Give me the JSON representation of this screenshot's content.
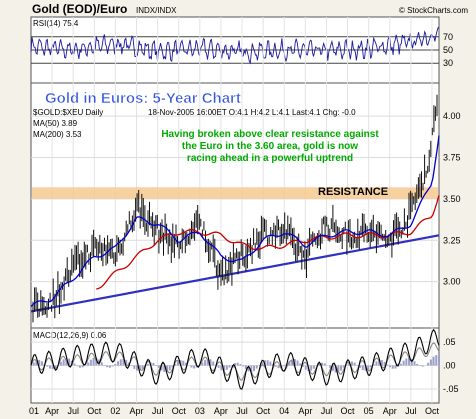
{
  "header": {
    "title": "Gold (EOD)/Euro",
    "exchange": "INDX/INDX",
    "brand": "© StockCharts.com"
  },
  "rsi": {
    "label": "RSI(14) 75.4",
    "ticks": [
      "70",
      "50",
      "30"
    ]
  },
  "main": {
    "chart_title": "Gold in Euros: 5-Year Chart",
    "symbol": "$GOLD:$XEU Daily",
    "quote": "18-Nov-2005 16:00ET  O:4.1  H:4.2  L:4.1  Last:4.1  Chg: -0.0",
    "ma50": "MA(50) 3.89",
    "ma200": "MA(200) 3.53",
    "annotation_lines": [
      "Having broken above clear resistance against",
      "the Euro in the 3.60 area, gold is now",
      "racing ahead in a powerful uptrend"
    ],
    "resistance_label": "RESISTANCE",
    "y_ticks": [
      "4.00",
      "3.75",
      "3.50",
      "3.25",
      "3.00"
    ]
  },
  "macd": {
    "label": "MACD(12,26,9) 0.06",
    "ticks": [
      ".05",
      ".00",
      "-.05"
    ]
  },
  "x_axis_labels": [
    "01",
    "Apr",
    "Jul",
    "Oct",
    "02",
    "Apr",
    "Jul",
    "Oct",
    "03",
    "Apr",
    "Jul",
    "Oct",
    "04",
    "Apr",
    "Jul",
    "Oct",
    "05",
    "Apr",
    "Jul",
    "Oct"
  ],
  "colors": {
    "price": "#111111",
    "ma50": "#0000cc",
    "ma200": "#cc0000",
    "trendline": "#3030c0",
    "resistance_band": "#f6c98e",
    "annotation": "#00aa00",
    "chart_title": "#3355dd",
    "rsi_line": "#1a1aa0",
    "macd_line": "#000000",
    "macd_signal": "#888888"
  },
  "chart_data": [
    {
      "type": "line",
      "title": "RSI(14) 75.4",
      "ylim": [
        0,
        100
      ],
      "reference_lines": [
        70,
        50,
        30
      ],
      "x": [
        "2001-01",
        "2001-07",
        "2002-01",
        "2002-07",
        "2003-01",
        "2003-07",
        "2004-01",
        "2004-07",
        "2005-01",
        "2005-07",
        "2005-11"
      ],
      "series": [
        {
          "name": "RSI(14)",
          "values": [
            55,
            50,
            60,
            48,
            52,
            47,
            50,
            49,
            52,
            62,
            75.4
          ]
        }
      ]
    },
    {
      "type": "line",
      "title": "Gold in Euros: 5-Year Chart",
      "ylim": [
        2.72,
        4.2
      ],
      "x": [
        "2001-01",
        "2001-04",
        "2001-07",
        "2001-10",
        "2002-01",
        "2002-04",
        "2002-07",
        "2002-10",
        "2003-01",
        "2003-04",
        "2003-07",
        "2003-10",
        "2004-01",
        "2004-04",
        "2004-07",
        "2004-10",
        "2005-01",
        "2005-04",
        "2005-07",
        "2005-10",
        "2005-11"
      ],
      "series": [
        {
          "name": "$GOLD:$XEU Daily",
          "values": [
            2.83,
            2.9,
            3.1,
            3.2,
            3.18,
            3.45,
            3.3,
            3.22,
            3.35,
            3.05,
            3.15,
            3.3,
            3.3,
            3.15,
            3.35,
            3.28,
            3.3,
            3.25,
            3.4,
            3.75,
            4.1
          ]
        },
        {
          "name": "MA(50)",
          "values": [
            2.85,
            2.9,
            3.02,
            3.15,
            3.2,
            3.38,
            3.35,
            3.25,
            3.3,
            3.15,
            3.12,
            3.25,
            3.3,
            3.22,
            3.28,
            3.3,
            3.3,
            3.28,
            3.35,
            3.6,
            3.89
          ]
        },
        {
          "name": "MA(200)",
          "values": [
            null,
            null,
            null,
            2.95,
            3.05,
            3.15,
            3.25,
            3.3,
            3.3,
            3.28,
            3.22,
            3.2,
            3.22,
            3.25,
            3.27,
            3.28,
            3.28,
            3.28,
            3.3,
            3.4,
            3.53
          ]
        }
      ],
      "annotations": [
        {
          "type": "resistance_band",
          "y_range": [
            3.5,
            3.57
          ],
          "label": "RESISTANCE"
        },
        {
          "type": "trendline",
          "points": [
            [
              "2001-01",
              2.82
            ],
            [
              "2005-11",
              3.28
            ]
          ]
        }
      ]
    },
    {
      "type": "line",
      "title": "MACD(12,26,9) 0.06",
      "ylim": [
        -0.08,
        0.08
      ],
      "x": [
        "2001-01",
        "2001-07",
        "2002-01",
        "2002-07",
        "2003-01",
        "2003-07",
        "2004-01",
        "2004-07",
        "2005-01",
        "2005-07",
        "2005-11"
      ],
      "series": [
        {
          "name": "MACD",
          "values": [
            0.0,
            0.02,
            0.03,
            -0.02,
            0.02,
            -0.03,
            0.01,
            -0.02,
            0.0,
            0.03,
            0.06
          ]
        },
        {
          "name": "Signal",
          "values": [
            0.0,
            0.01,
            0.02,
            -0.01,
            0.01,
            -0.02,
            0.0,
            -0.01,
            0.0,
            0.02,
            0.04
          ]
        }
      ]
    }
  ]
}
